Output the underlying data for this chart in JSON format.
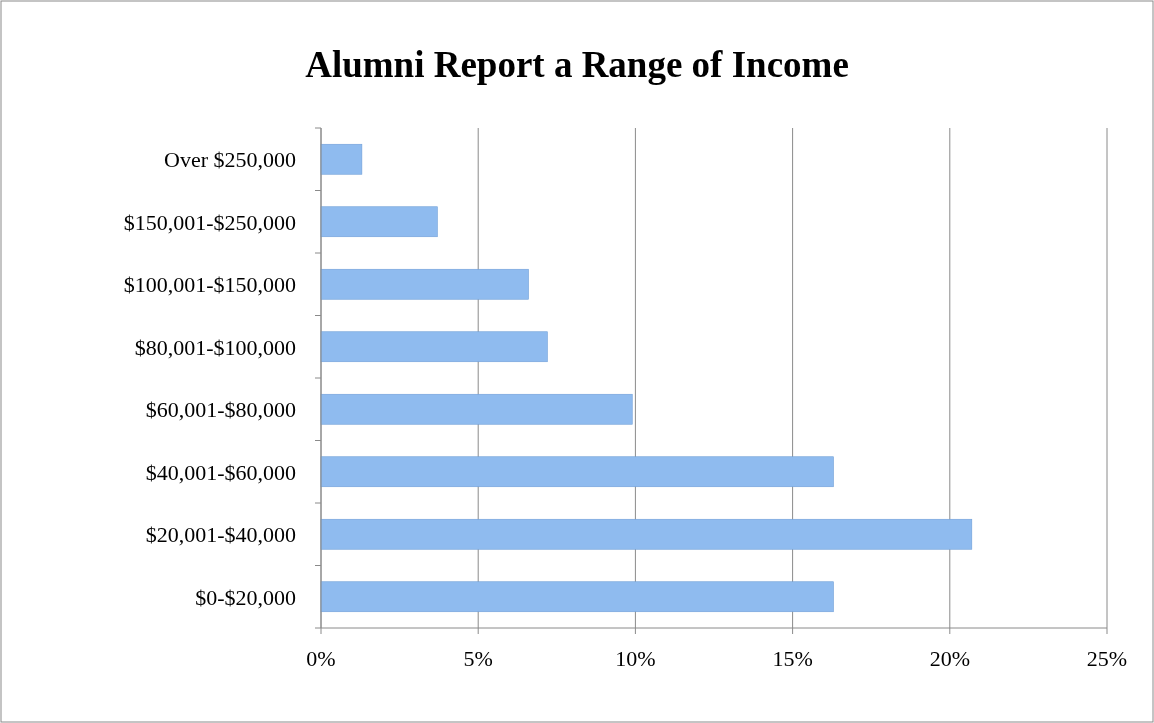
{
  "chart_data": {
    "type": "bar",
    "orientation": "horizontal",
    "title": "Alumni Report a Range of Income",
    "categories": [
      "Over $250,000",
      "$150,001-$250,000",
      "$100,001-$150,000",
      "$80,001-$100,000",
      "$60,001-$80,000",
      "$40,001-$60,000",
      "$20,001-$40,000",
      "$0-$20,000"
    ],
    "values": [
      1.3,
      3.7,
      6.6,
      7.2,
      9.9,
      16.3,
      20.7,
      16.3
    ],
    "color": "#8fbbef",
    "xlim": [
      0,
      25
    ],
    "xticks": [
      {
        "value": 0,
        "label": "0%"
      },
      {
        "value": 5,
        "label": "5%"
      },
      {
        "value": 10,
        "label": "10%"
      },
      {
        "value": 15,
        "label": "15%"
      },
      {
        "value": 20,
        "label": "20%"
      },
      {
        "value": 25,
        "label": "25%"
      }
    ],
    "grid": "x"
  }
}
